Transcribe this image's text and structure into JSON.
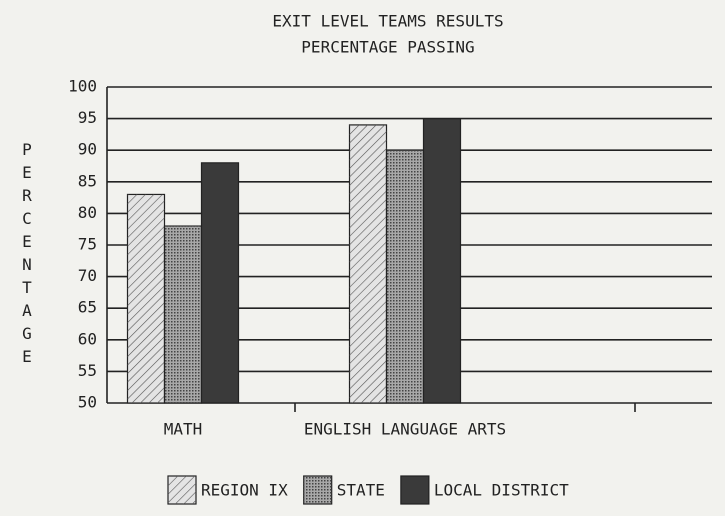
{
  "chart_data": {
    "type": "bar",
    "title": "EXIT LEVEL TEAMS RESULTS",
    "subtitle": "PERCENTAGE PASSING",
    "y_label": "PERCENTAGE",
    "categories": [
      "MATH",
      "ENGLISH LANGUAGE ARTS",
      null
    ],
    "series": [
      {
        "name": "REGION IX",
        "color": "#e4e4e4",
        "values": [
          83,
          94,
          null
        ]
      },
      {
        "name": "STATE",
        "color": "#a8a8a8",
        "values": [
          78,
          90,
          null
        ]
      },
      {
        "name": "LOCAL DISTRICT",
        "color": "#3a3a3a",
        "values": [
          88,
          95,
          null
        ]
      }
    ],
    "ylim": [
      50,
      100
    ],
    "yticks": [
      50,
      55,
      60,
      65,
      70,
      75,
      80,
      85,
      90,
      95,
      100
    ],
    "grid": true
  }
}
